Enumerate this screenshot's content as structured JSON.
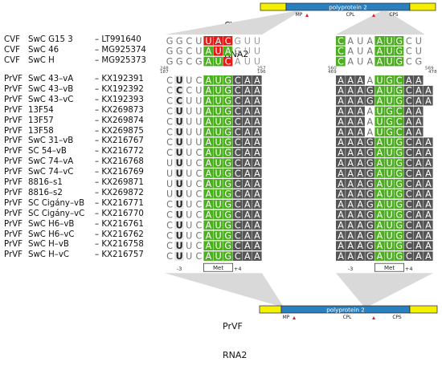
{
  "top_genome": {
    "title_lines": [
      "CVF",
      "RNA2"
    ],
    "polyprotein_label": "polyprotein 2",
    "markers": [
      "MP",
      "CPL",
      "CPS"
    ]
  },
  "bottom_genome": {
    "title_lines": [
      "PrVF",
      "RNA2"
    ],
    "polyprotein_label": "polyprotein 2",
    "markers": [
      "MP",
      "CPL",
      "CPS"
    ]
  },
  "colors": {
    "start_codon": "#4caf1f",
    "consensus_dark": "#555555",
    "mutation_red": "#e11b1b",
    "utr_yellow": "#f5ef00",
    "poly_blue": "#2a7fbf",
    "connector_gray": "#d9d9d9",
    "light_cell": "#e6e6e6",
    "marker_red": "#e02020"
  },
  "cvf_rows": [
    {
      "virus": "CVF",
      "strain": "SwC G15 3",
      "accession": "– LT991640",
      "seq_left": "GGCUUACGUU",
      "seq_right": "CAUAAUGCU"
    },
    {
      "virus": "CVF",
      "strain": "SwC 46",
      "accession": "– MG925374",
      "seq_left": "GGCUAUAGUU",
      "seq_right": "CAUAAUGCU"
    },
    {
      "virus": "CVF",
      "strain": "SwC H",
      "accession": "– MG925373",
      "seq_left": "GGCGAUCAUU",
      "seq_right": "CAUAAUGCG"
    }
  ],
  "cvf_ranges": {
    "left_start": "248",
    "left_end": "257",
    "right_start": "560",
    "right_end": "569"
  },
  "prvf_ranges": {
    "left_start": "187",
    "left_end": "196",
    "right_start": "469",
    "right_end": "478"
  },
  "prvf_rows": [
    {
      "virus": "PrVF",
      "strain": "SwC 43–vA",
      "accession": "– KX192391",
      "seq_left": "CUUCAUGCAA",
      "seq_right": "AAAAUGCAA"
    },
    {
      "virus": "PrVF",
      "strain": "SwC 43–vB",
      "accession": "– KX192392",
      "seq_left": "CCCUAUGCAA",
      "seq_right": "AAAGAUGCAA"
    },
    {
      "virus": "PrVF",
      "strain": "SwC 43–vC",
      "accession": "– KX192393",
      "seq_left": "CCUUAUGCAA",
      "seq_right": "AAAGAUGCAA"
    },
    {
      "virus": "PrVF",
      "strain": "13F54",
      "accession": "– KX269873",
      "seq_left": "CUUUAUGCAA",
      "seq_right": "AAAAUGCAA"
    },
    {
      "virus": "PrVF",
      "strain": "13F57",
      "accession": "– KX269874",
      "seq_left": "CUUUAUGCAA",
      "seq_right": "AAAAUGCAA"
    },
    {
      "virus": "PrVF",
      "strain": "13F58",
      "accession": "– KX269875",
      "seq_left": "CUUUAUGCAA",
      "seq_right": "AAAAUGCAA"
    },
    {
      "virus": "PrVF",
      "strain": "SwC 31–vB",
      "accession": "– KX216767",
      "seq_left": "CUUUAUGCAA",
      "seq_right": "AAAGAUGCAA"
    },
    {
      "virus": "PrVF",
      "strain": "SC 54–vB",
      "accession": "– KX216772",
      "seq_left": "CUUCAUGCAA",
      "seq_right": "AAAGAUGCAA"
    },
    {
      "virus": "PrVF",
      "strain": "SwC 74–vA",
      "accession": "– KX216768",
      "seq_left": "UUUCAUGCAA",
      "seq_right": "AAAGAUGCAA"
    },
    {
      "virus": "PrVF",
      "strain": "SwC 74–vC",
      "accession": "– KX216769",
      "seq_left": "UUUCAUGCAA",
      "seq_right": "AAAGAUGCAA"
    },
    {
      "virus": "PrVF",
      "strain": "8816–s1",
      "accession": "– KX269871",
      "seq_left": "UUUCAUGCAA",
      "seq_right": "AAAGAUGCAA"
    },
    {
      "virus": "PrVF",
      "strain": "8816–s2",
      "accession": "– KX269872",
      "seq_left": "UUUCAUGCAA",
      "seq_right": "AAAGAUGCAA"
    },
    {
      "virus": "PrVF",
      "strain": "SC Cigány–vB",
      "accession": "– KX216771",
      "seq_left": "CUUCAUGCAA",
      "seq_right": "AAAGAUGCAA"
    },
    {
      "virus": "PrVF",
      "strain": "SC Cigány–vC",
      "accession": "– KX216770",
      "seq_left": "CUUCAUGCAA",
      "seq_right": "AAAGAUGCAA"
    },
    {
      "virus": "PrVF",
      "strain": "SwC H6–vB",
      "accession": "– KX216761",
      "seq_left": "CUUCAUGCAA",
      "seq_right": "AAAGAUGCAA"
    },
    {
      "virus": "PrVF",
      "strain": "SwC H6–vC",
      "accession": "– KX216762",
      "seq_left": "CUUCAUGCAA",
      "seq_right": "AAAGAUGCAA"
    },
    {
      "virus": "PrVF",
      "strain": "SwC H–vB",
      "accession": "– KX216758",
      "seq_left": "CUUCAUGCAA",
      "seq_right": "AAAGAUGCAA"
    },
    {
      "virus": "PrVF",
      "strain": "SwC H–vC",
      "accession": "– KX216757",
      "seq_left": "CUUCAUGCAA",
      "seq_right": "AAAGAUGCAA"
    }
  ],
  "annotations": {
    "minus3": "-3",
    "plus4": "+4",
    "met": "Met"
  }
}
